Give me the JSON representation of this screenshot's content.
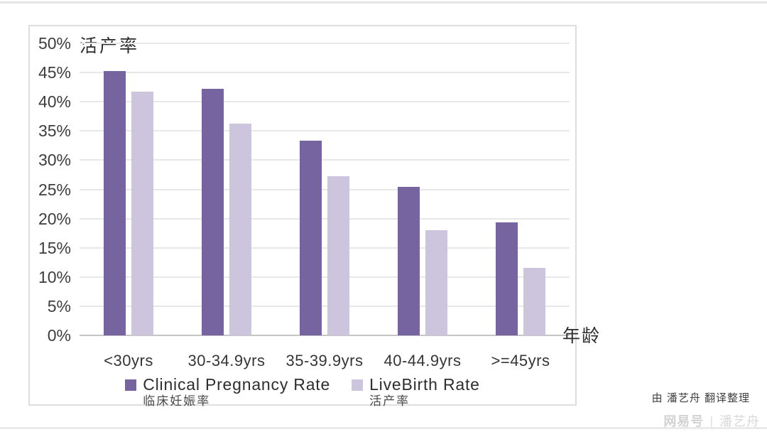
{
  "page": {
    "credit": "由 潘艺舟 翻译整理",
    "watermark": {
      "brand": "网易号",
      "divider": "|",
      "author": "潘艺舟"
    }
  },
  "chart_data": {
    "type": "bar",
    "title": "",
    "y_axis_title": "活产率",
    "x_axis_title": "年龄",
    "categories": [
      "<30yrs",
      "30-34.9yrs",
      "35-39.9yrs",
      "40-44.9yrs",
      ">=45yrs"
    ],
    "series": [
      {
        "name": "Clinical Pregnancy Rate",
        "name_zh": "临床妊娠率",
        "color": "#7664a0",
        "values": [
          45.2,
          42.2,
          33.3,
          25.4,
          19.4
        ]
      },
      {
        "name": "LiveBirth Rate",
        "name_zh": "活产率",
        "color": "#cdc5dd",
        "values": [
          41.7,
          36.2,
          27.3,
          18.0,
          11.5
        ]
      }
    ],
    "ylim": [
      0,
      50
    ],
    "y_tick_step": 5,
    "y_ticks": [
      "50%",
      "45%",
      "40%",
      "35%",
      "30%",
      "25%",
      "20%",
      "15%",
      "10%",
      "5%",
      "0%"
    ],
    "grid": true,
    "legend_position": "bottom",
    "colors": {
      "grid": "#e8e8e8",
      "axis": "#c6c6c6",
      "text": "#3d3d3d"
    }
  }
}
